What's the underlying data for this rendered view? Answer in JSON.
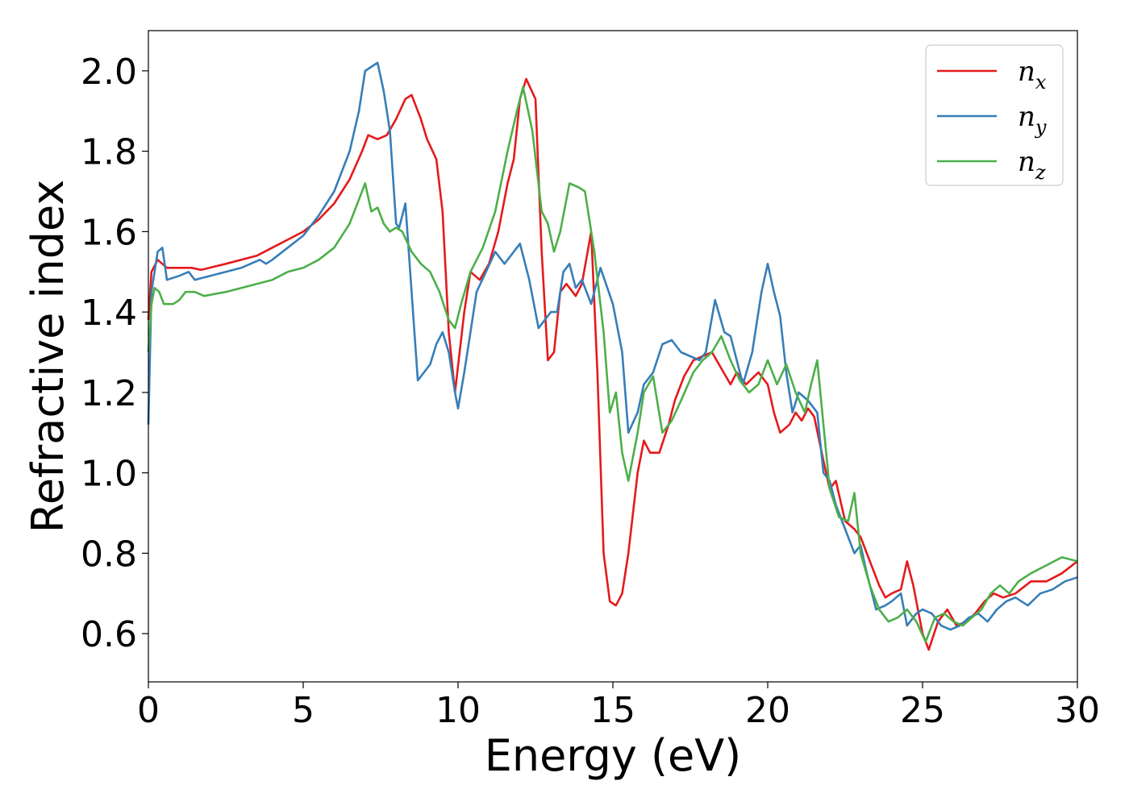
{
  "chart_data": {
    "type": "line",
    "xlabel": "Energy (eV)",
    "ylabel": "Refractive index",
    "xlim": [
      0,
      30
    ],
    "ylim": [
      0.48,
      2.1
    ],
    "xticks": [
      0,
      5,
      10,
      15,
      20,
      25,
      30
    ],
    "xtick_labels": [
      "0",
      "5",
      "10",
      "15",
      "20",
      "25",
      "30"
    ],
    "yticks": [
      0.6,
      0.8,
      1.0,
      1.2,
      1.4,
      1.6,
      1.8,
      2.0
    ],
    "ytick_labels": [
      "0.6",
      "0.8",
      "1.0",
      "1.2",
      "1.4",
      "1.6",
      "1.8",
      "2.0"
    ],
    "grid": false,
    "legend_position": "top-right",
    "series": [
      {
        "name": "n_x",
        "label_base": "n",
        "label_sub": "x",
        "color": "#e41a1c",
        "x": [
          0,
          0.1,
          0.3,
          0.6,
          1.0,
          1.4,
          1.7,
          2.5,
          3.5,
          4.0,
          4.5,
          5.0,
          5.5,
          6.0,
          6.5,
          6.9,
          7.1,
          7.4,
          7.7,
          8.0,
          8.3,
          8.5,
          8.8,
          9.0,
          9.3,
          9.5,
          9.7,
          9.9,
          10.2,
          10.4,
          10.7,
          11.0,
          11.3,
          11.6,
          11.8,
          12.0,
          12.2,
          12.5,
          12.7,
          12.9,
          13.1,
          13.3,
          13.5,
          13.8,
          14.0,
          14.3,
          14.5,
          14.7,
          14.9,
          15.1,
          15.3,
          15.5,
          15.8,
          16.0,
          16.2,
          16.5,
          16.8,
          17.0,
          17.3,
          17.6,
          17.9,
          18.2,
          18.5,
          18.8,
          19.0,
          19.3,
          19.7,
          20.0,
          20.2,
          20.4,
          20.7,
          20.9,
          21.1,
          21.3,
          21.5,
          21.8,
          22.0,
          22.2,
          22.5,
          22.8,
          23.0,
          23.3,
          23.6,
          23.8,
          24.0,
          24.3,
          24.5,
          24.7,
          25.0,
          25.2,
          25.5,
          25.8,
          26.1,
          26.4,
          26.7,
          27.0,
          27.3,
          27.6,
          28.0,
          28.5,
          29.0,
          29.5,
          30.0
        ],
        "y": [
          1.38,
          1.5,
          1.53,
          1.51,
          1.51,
          1.51,
          1.505,
          1.52,
          1.54,
          1.56,
          1.58,
          1.6,
          1.63,
          1.67,
          1.73,
          1.8,
          1.84,
          1.83,
          1.84,
          1.88,
          1.93,
          1.94,
          1.88,
          1.83,
          1.78,
          1.65,
          1.35,
          1.2,
          1.4,
          1.5,
          1.48,
          1.52,
          1.6,
          1.72,
          1.78,
          1.93,
          1.98,
          1.93,
          1.55,
          1.28,
          1.3,
          1.45,
          1.47,
          1.44,
          1.47,
          1.6,
          1.25,
          0.8,
          0.68,
          0.67,
          0.7,
          0.8,
          1.0,
          1.08,
          1.05,
          1.05,
          1.12,
          1.18,
          1.24,
          1.28,
          1.29,
          1.3,
          1.26,
          1.22,
          1.25,
          1.22,
          1.25,
          1.22,
          1.15,
          1.1,
          1.12,
          1.15,
          1.13,
          1.16,
          1.14,
          1.03,
          0.96,
          0.98,
          0.88,
          0.86,
          0.84,
          0.78,
          0.72,
          0.69,
          0.7,
          0.71,
          0.78,
          0.72,
          0.6,
          0.56,
          0.63,
          0.66,
          0.62,
          0.63,
          0.65,
          0.68,
          0.7,
          0.69,
          0.7,
          0.73,
          0.73,
          0.75,
          0.78
        ]
      },
      {
        "name": "n_y",
        "label_base": "n",
        "label_sub": "y",
        "color": "#377eb8",
        "x": [
          0,
          0.1,
          0.3,
          0.45,
          0.6,
          1.0,
          1.3,
          1.5,
          2.0,
          3.0,
          3.6,
          3.8,
          4.0,
          4.5,
          5.0,
          5.5,
          6.0,
          6.5,
          6.8,
          7.0,
          7.2,
          7.4,
          7.6,
          7.8,
          8.0,
          8.1,
          8.3,
          8.5,
          8.7,
          8.9,
          9.1,
          9.3,
          9.5,
          9.7,
          9.9,
          10.0,
          10.2,
          10.4,
          10.6,
          10.9,
          11.2,
          11.5,
          11.8,
          12.0,
          12.3,
          12.6,
          12.8,
          13.0,
          13.2,
          13.4,
          13.6,
          13.8,
          14.0,
          14.3,
          14.6,
          15.0,
          15.3,
          15.5,
          15.8,
          16.0,
          16.3,
          16.6,
          16.9,
          17.2,
          17.5,
          17.8,
          18.0,
          18.3,
          18.6,
          18.8,
          19.0,
          19.2,
          19.5,
          19.8,
          20.0,
          20.2,
          20.4,
          20.6,
          20.8,
          21.0,
          21.3,
          21.6,
          21.8,
          22.0,
          22.2,
          22.5,
          22.8,
          23.0,
          23.2,
          23.5,
          23.8,
          24.0,
          24.3,
          24.5,
          24.8,
          25.0,
          25.3,
          25.6,
          25.9,
          26.2,
          26.5,
          26.8,
          27.1,
          27.4,
          27.7,
          28.0,
          28.4,
          28.8,
          29.2,
          29.6,
          30.0
        ],
        "y": [
          1.12,
          1.45,
          1.55,
          1.56,
          1.48,
          1.49,
          1.5,
          1.48,
          1.49,
          1.51,
          1.53,
          1.52,
          1.53,
          1.56,
          1.59,
          1.64,
          1.7,
          1.8,
          1.9,
          2.0,
          2.01,
          2.02,
          1.95,
          1.85,
          1.62,
          1.61,
          1.67,
          1.45,
          1.23,
          1.25,
          1.27,
          1.32,
          1.35,
          1.3,
          1.2,
          1.16,
          1.25,
          1.35,
          1.45,
          1.5,
          1.55,
          1.52,
          1.55,
          1.57,
          1.48,
          1.36,
          1.38,
          1.4,
          1.4,
          1.5,
          1.52,
          1.46,
          1.48,
          1.42,
          1.51,
          1.42,
          1.3,
          1.1,
          1.15,
          1.22,
          1.25,
          1.32,
          1.33,
          1.3,
          1.29,
          1.28,
          1.3,
          1.43,
          1.35,
          1.34,
          1.28,
          1.22,
          1.3,
          1.45,
          1.52,
          1.45,
          1.39,
          1.25,
          1.15,
          1.2,
          1.18,
          1.15,
          1.0,
          0.98,
          0.92,
          0.86,
          0.8,
          0.82,
          0.75,
          0.66,
          0.67,
          0.68,
          0.7,
          0.62,
          0.65,
          0.66,
          0.65,
          0.62,
          0.61,
          0.62,
          0.64,
          0.65,
          0.63,
          0.66,
          0.68,
          0.69,
          0.67,
          0.7,
          0.71,
          0.73,
          0.74
        ]
      },
      {
        "name": "n_z",
        "label_base": "n",
        "label_sub": "z",
        "color": "#4daf4a",
        "x": [
          0,
          0.1,
          0.2,
          0.35,
          0.5,
          0.8,
          1.0,
          1.2,
          1.5,
          1.8,
          2.5,
          3.5,
          4.0,
          4.5,
          5.0,
          5.5,
          6.0,
          6.5,
          6.8,
          7.0,
          7.2,
          7.4,
          7.6,
          7.8,
          8.0,
          8.2,
          8.5,
          8.8,
          9.1,
          9.4,
          9.7,
          9.9,
          10.1,
          10.4,
          10.8,
          11.2,
          11.6,
          11.9,
          12.1,
          12.4,
          12.7,
          12.9,
          13.1,
          13.3,
          13.6,
          13.9,
          14.1,
          14.4,
          14.7,
          14.9,
          15.1,
          15.3,
          15.5,
          15.8,
          16.0,
          16.3,
          16.6,
          16.9,
          17.2,
          17.6,
          17.9,
          18.2,
          18.5,
          18.8,
          19.1,
          19.4,
          19.7,
          20.0,
          20.3,
          20.6,
          20.9,
          21.2,
          21.4,
          21.6,
          21.8,
          22.0,
          22.3,
          22.6,
          22.8,
          23.0,
          23.3,
          23.6,
          23.9,
          24.2,
          24.5,
          24.8,
          25.1,
          25.4,
          25.7,
          26.0,
          26.3,
          26.6,
          26.9,
          27.2,
          27.5,
          27.8,
          28.1,
          28.5,
          29.0,
          29.5,
          30.0
        ],
        "y": [
          1.3,
          1.42,
          1.46,
          1.45,
          1.42,
          1.42,
          1.43,
          1.45,
          1.45,
          1.44,
          1.45,
          1.47,
          1.48,
          1.5,
          1.51,
          1.53,
          1.56,
          1.62,
          1.68,
          1.72,
          1.65,
          1.66,
          1.62,
          1.6,
          1.61,
          1.6,
          1.55,
          1.52,
          1.5,
          1.45,
          1.38,
          1.36,
          1.42,
          1.5,
          1.56,
          1.65,
          1.8,
          1.9,
          1.96,
          1.85,
          1.65,
          1.62,
          1.55,
          1.6,
          1.72,
          1.71,
          1.7,
          1.55,
          1.35,
          1.15,
          1.2,
          1.05,
          0.98,
          1.1,
          1.2,
          1.24,
          1.1,
          1.13,
          1.18,
          1.25,
          1.28,
          1.3,
          1.34,
          1.28,
          1.23,
          1.2,
          1.22,
          1.28,
          1.22,
          1.27,
          1.2,
          1.15,
          1.22,
          1.28,
          1.12,
          0.96,
          0.89,
          0.88,
          0.95,
          0.8,
          0.72,
          0.66,
          0.63,
          0.64,
          0.66,
          0.63,
          0.58,
          0.64,
          0.65,
          0.63,
          0.62,
          0.64,
          0.66,
          0.7,
          0.72,
          0.7,
          0.73,
          0.75,
          0.77,
          0.79,
          0.78
        ]
      }
    ]
  }
}
